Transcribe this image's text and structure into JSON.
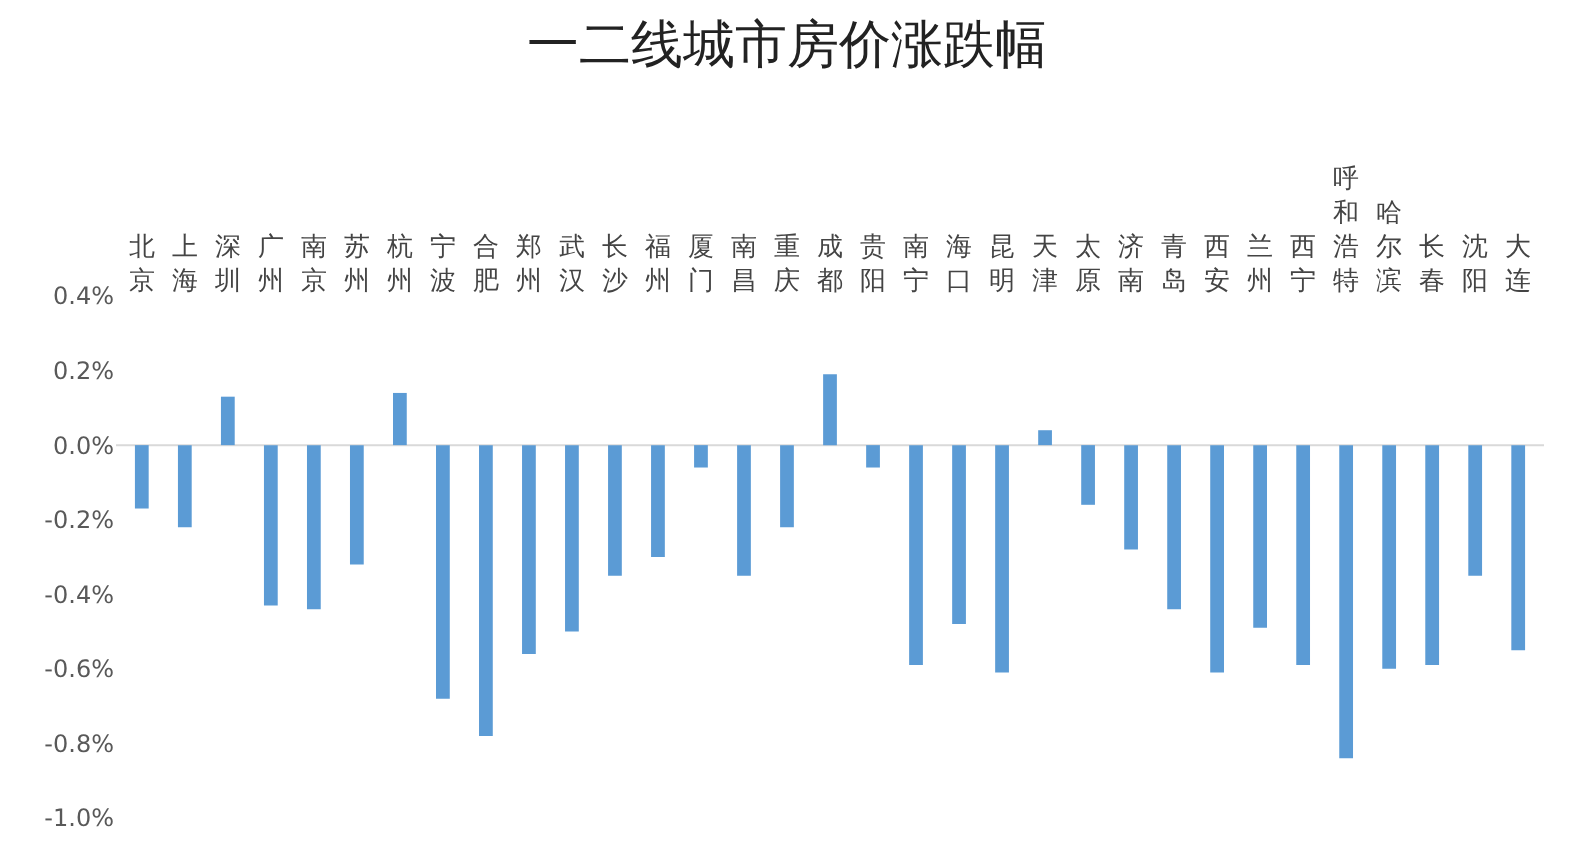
{
  "chart_data": {
    "type": "bar",
    "title": "一二线城市房价涨跌幅",
    "categories": [
      "北京",
      "上海",
      "深圳",
      "广州",
      "南京",
      "苏州",
      "杭州",
      "宁波",
      "合肥",
      "郑州",
      "武汉",
      "长沙",
      "福州",
      "厦门",
      "南昌",
      "重庆",
      "成都",
      "贵阳",
      "南宁",
      "海口",
      "昆明",
      "天津",
      "太原",
      "济南",
      "青岛",
      "西安",
      "兰州",
      "西宁",
      "呼和浩特",
      "哈尔滨",
      "长春",
      "沈阳",
      "大连"
    ],
    "values": [
      -0.17,
      -0.22,
      0.13,
      -0.43,
      -0.44,
      -0.32,
      0.14,
      -0.68,
      -0.78,
      -0.56,
      -0.5,
      -0.35,
      -0.3,
      -0.06,
      -0.35,
      -0.22,
      0.19,
      -0.06,
      -0.59,
      -0.48,
      -0.61,
      0.04,
      -0.16,
      -0.28,
      -0.44,
      -0.61,
      -0.49,
      -0.59,
      -0.84,
      -0.6,
      -0.59,
      -0.35,
      -0.55
    ],
    "color": "#5b9bd5",
    "ylim": [
      -1.0,
      0.4
    ],
    "yticks": [
      {
        "value": 0.4,
        "label": "0.4%"
      },
      {
        "value": 0.2,
        "label": "0.2%"
      },
      {
        "value": 0,
        "label": "0.0%"
      },
      {
        "value": -0.2,
        "label": "-0.2%"
      },
      {
        "value": -0.4,
        "label": "-0.4%"
      },
      {
        "value": -0.6,
        "label": "-0.6%"
      },
      {
        "value": -0.8,
        "label": "-0.8%"
      },
      {
        "value": -1.0,
        "label": "-1.0%"
      }
    ],
    "ref_lines": [
      {
        "axis": "y",
        "value": 0,
        "color": "#d9d9d9",
        "line_style": "solid"
      }
    ],
    "grid": false,
    "legend": false
  }
}
